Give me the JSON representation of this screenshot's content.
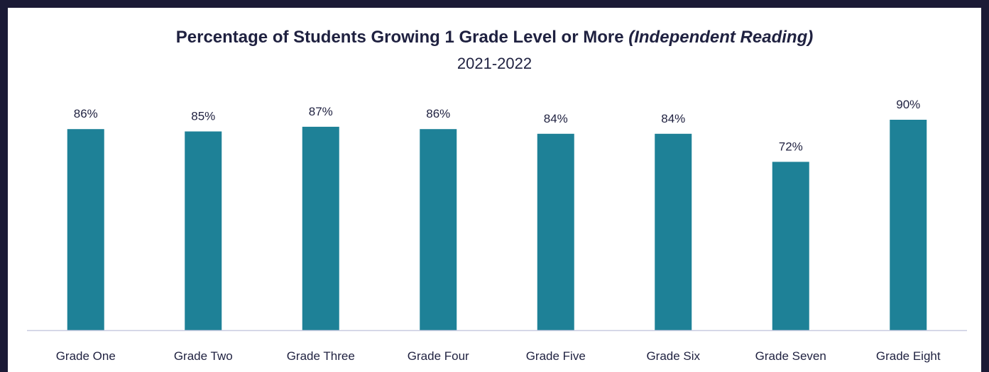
{
  "chart_data": {
    "type": "bar",
    "title": "Percentage of Students Growing 1 Grade Level or More",
    "title_italic": "(Independent Reading)",
    "subtitle": "2021-2022",
    "categories": [
      "Grade One",
      "Grade Two",
      "Grade Three",
      "Grade Four",
      "Grade Five",
      "Grade Six",
      "Grade Seven",
      "Grade Eight"
    ],
    "values": [
      86,
      85,
      87,
      86,
      84,
      84,
      72,
      90
    ],
    "data_labels": [
      "86%",
      "85%",
      "87%",
      "86%",
      "84%",
      "84%",
      "72%",
      "90%"
    ],
    "xlabel": "",
    "ylabel": "",
    "ylim": [
      0,
      100
    ],
    "grid": false,
    "legend": "none",
    "bar_color": "#1e8197",
    "axis_color": "#c8cbe0"
  }
}
